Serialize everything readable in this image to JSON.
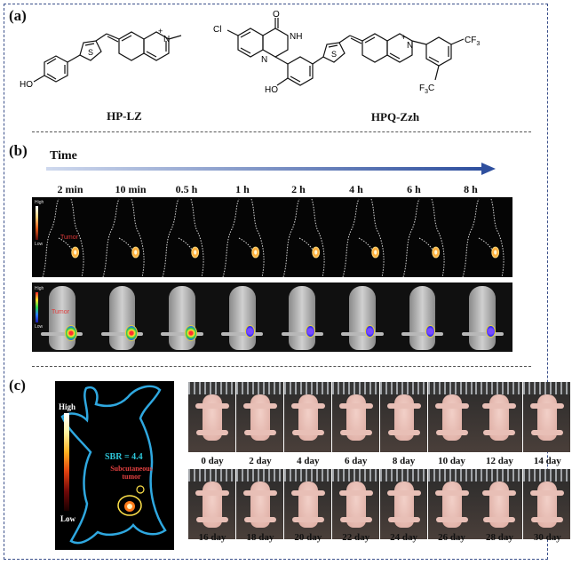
{
  "panels": {
    "a": "(a)",
    "b": "(b)",
    "c": "(c)"
  },
  "compounds": {
    "first": "HP-LZ",
    "second": "HPQ-Zzh"
  },
  "structure_labels": {
    "ho1": "HO",
    "n_plus1": "N",
    "plus": "+",
    "cl": "Cl",
    "nh": "NH",
    "n_ring": "N",
    "o": "O",
    "ho2": "HO",
    "n_plus2": "N",
    "s": "S",
    "cf3_right": "CF",
    "cf3_left": "F",
    "three": "3"
  },
  "time": {
    "label": "Time",
    "points": [
      "2 min",
      "10 min",
      "0.5 h",
      "1 h",
      "2 h",
      "4 h",
      "6 h",
      "8 h"
    ]
  },
  "scale": {
    "high": "High",
    "low": "Low"
  },
  "tumor_label": "Tumor",
  "panel_c": {
    "high": "High",
    "low": "Low",
    "sbr": "SBR = 4.4",
    "subcutaneous": "Subcutaneous",
    "tumor": "tumor",
    "days_row1": [
      "0 day",
      "2 day",
      "4 day",
      "6 day",
      "8 day",
      "10 day",
      "12 day",
      "14 day"
    ],
    "days_row2": [
      "16 day",
      "18 day",
      "20 day",
      "22 day",
      "24 day",
      "26 day",
      "28 day",
      "30 day"
    ]
  },
  "colors": {
    "frame": "#3a4f8a",
    "arrow": "#2e4f9e",
    "outline_cyan": "#2fa8e0",
    "tumor_red": "#e03a3a"
  }
}
